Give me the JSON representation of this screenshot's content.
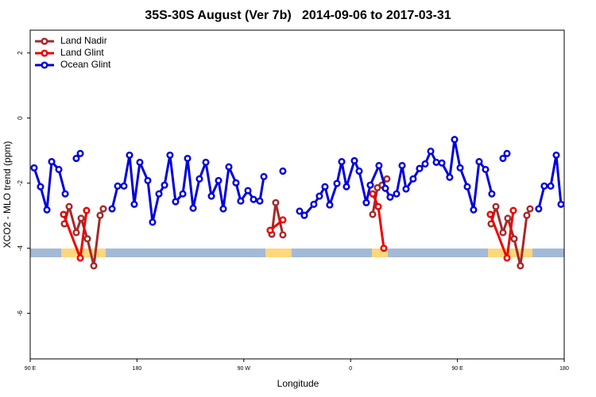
{
  "chart_data": {
    "type": "line",
    "title": "35S-30S August (Ver 7b)   2014-09-06 to 2017-03-31",
    "xlabel": "Longitude",
    "ylabel": "XCO2 - MLO trend (ppm)",
    "xlim": [
      90,
      540
    ],
    "xticks": [
      {
        "value": 90,
        "label": "90 E"
      },
      {
        "value": 180,
        "label": "180"
      },
      {
        "value": 270,
        "label": "90 W"
      },
      {
        "value": 360,
        "label": "0"
      },
      {
        "value": 450,
        "label": "90 E"
      },
      {
        "value": 540,
        "label": "180"
      }
    ],
    "ylim": [
      -7.4,
      2.7
    ],
    "yticks": [
      2,
      0,
      -2,
      -4,
      -6
    ],
    "legend": "topleft",
    "series": [
      {
        "name": "Land Nadir",
        "color": "#a52a2a",
        "x": [
          118.8,
          122.8,
          128.8,
          132.9,
          138.2,
          143.6,
          148.9,
          151.6,
          null,
          293.6,
          296.9,
          302.9,
          null,
          378.6,
          382.6,
          386.6,
          390.6,
          null,
          478.4,
          482.4,
          488.4,
          492.4,
          497.8,
          503.1,
          508.5,
          511.2
        ],
        "values": [
          -3.25,
          -2.72,
          -3.52,
          -3.08,
          -3.71,
          -4.54,
          -2.99,
          -2.79,
          null,
          -3.57,
          -2.6,
          -3.59,
          null,
          -2.96,
          -2.14,
          -2.06,
          -1.87,
          null,
          -3.25,
          -2.72,
          -3.52,
          -3.08,
          -3.71,
          -4.54,
          -2.99,
          -2.79
        ]
      },
      {
        "name": "Land Glint",
        "color": "#ee0000",
        "x": [
          118.1,
          132.2,
          137.5,
          null,
          292.2,
          302.9,
          null,
          378.6,
          383.3,
          388.0,
          null,
          477.7,
          491.8,
          497.1
        ],
        "values": [
          -2.96,
          -4.3,
          -2.84,
          null,
          -3.45,
          -3.13,
          null,
          -2.33,
          -2.72,
          -4.0,
          null,
          -2.96,
          -4.3,
          -2.84
        ]
      },
      {
        "name": "Ocean Glint",
        "color": "#0000dd",
        "x": [
          93.3,
          98.7,
          104.1,
          108.1,
          114.1,
          119.5,
          null,
          128.8,
          132.2,
          null,
          159.0,
          163.7,
          169.0,
          173.7,
          177.7,
          182.4,
          189.1,
          193.1,
          198.5,
          203.2,
          207.8,
          212.5,
          218.6,
          222.6,
          227.3,
          232.6,
          238.0,
          242.7,
          248.7,
          252.7,
          257.4,
          263.4,
          267.4,
          273.5,
          278.2,
          283.5,
          286.9,
          null,
          302.9,
          null,
          317.0,
          321.0,
          329.0,
          333.7,
          338.4,
          342.4,
          348.5,
          352.5,
          356.5,
          363.2,
          367.2,
          373.2,
          376.6,
          383.9,
          389.3,
          393.3,
          398.7,
          403.4,
          406.7,
          412.7,
          418.1,
          422.8,
          427.5,
          432.2,
          436.9,
          443.5,
          447.6,
          452.3,
          458.3,
          463.6,
          468.3,
          473.7,
          479.0,
          null,
          488.4,
          491.8,
          null,
          518.5,
          523.2,
          528.6,
          533.3,
          537.3
        ],
        "values": [
          -1.53,
          -2.11,
          -2.82,
          -1.34,
          -1.58,
          -2.33,
          null,
          -1.24,
          -1.09,
          null,
          -2.79,
          -2.09,
          -2.09,
          -1.14,
          -2.65,
          -1.36,
          -1.92,
          -3.2,
          -2.33,
          -2.06,
          -1.14,
          -2.57,
          -2.33,
          -1.24,
          -2.77,
          -1.87,
          -1.36,
          -2.4,
          -1.92,
          -2.79,
          -1.5,
          -1.99,
          -2.55,
          -2.23,
          -2.5,
          -2.55,
          -1.8,
          null,
          -1.63,
          null,
          -2.86,
          -2.99,
          -2.65,
          -2.4,
          -2.11,
          -2.67,
          -2.01,
          -1.34,
          -2.11,
          -1.31,
          -1.63,
          -2.6,
          -2.06,
          -1.46,
          -2.16,
          -2.43,
          -2.33,
          -1.46,
          -2.18,
          -1.87,
          -1.55,
          -1.41,
          -1.02,
          -1.36,
          -1.38,
          -1.82,
          -0.66,
          -1.53,
          -2.11,
          -2.82,
          -1.34,
          -1.58,
          -2.33,
          null,
          -1.24,
          -1.09,
          null,
          -2.79,
          -2.09,
          -2.09,
          -1.14,
          -2.65
        ]
      }
    ]
  }
}
